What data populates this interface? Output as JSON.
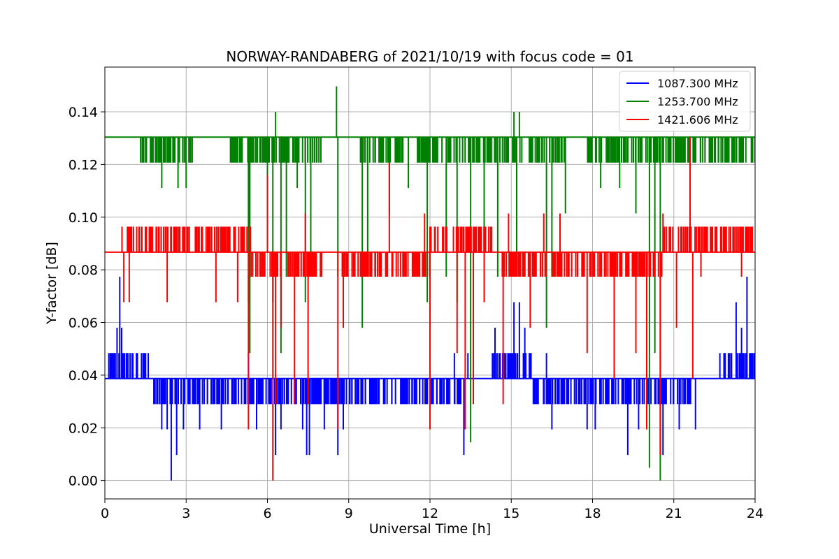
{
  "chart_data": {
    "type": "line",
    "title": "NORWAY-RANDABERG of 2021/10/19 with focus code = 01",
    "xlabel": "Universal Time [h]",
    "ylabel": "Y-factor [dB]",
    "xlim": [
      0,
      24
    ],
    "ylim": [
      -0.007,
      0.157
    ],
    "xticks": [
      "0",
      "3",
      "6",
      "9",
      "12",
      "15",
      "18",
      "21",
      "24"
    ],
    "yticks": [
      "0.00",
      "0.02",
      "0.04",
      "0.06",
      "0.08",
      "0.10",
      "0.12",
      "0.14"
    ],
    "grid": true,
    "legend_position": "top-right",
    "series": [
      {
        "name": "1087.300 MHz",
        "color": "#0000ff",
        "baseline": 0.0387,
        "levels": [
          0.0387,
          0.029,
          0.0484
        ],
        "spikes": [
          {
            "x": 0.15,
            "y": 0.0484
          },
          {
            "x": 0.35,
            "y": 0.0484
          },
          {
            "x": 0.45,
            "y": 0.058
          },
          {
            "x": 0.55,
            "y": 0.0774
          },
          {
            "x": 0.62,
            "y": 0.058
          },
          {
            "x": 0.8,
            "y": 0.0484
          },
          {
            "x": 1.2,
            "y": 0.0484
          },
          {
            "x": 1.6,
            "y": 0.0484
          },
          {
            "x": 2.1,
            "y": 0.0194
          },
          {
            "x": 2.3,
            "y": 0.0194
          },
          {
            "x": 2.45,
            "y": 0.0
          },
          {
            "x": 2.65,
            "y": 0.0097
          },
          {
            "x": 2.9,
            "y": 0.0194
          },
          {
            "x": 3.5,
            "y": 0.0194
          },
          {
            "x": 4.3,
            "y": 0.0194
          },
          {
            "x": 5.3,
            "y": 0.0484
          },
          {
            "x": 5.6,
            "y": 0.0194
          },
          {
            "x": 6.3,
            "y": 0.0097
          },
          {
            "x": 6.5,
            "y": 0.0194
          },
          {
            "x": 7.3,
            "y": 0.0194
          },
          {
            "x": 7.45,
            "y": 0.0097
          },
          {
            "x": 7.55,
            "y": 0.0097
          },
          {
            "x": 8.1,
            "y": 0.0194
          },
          {
            "x": 8.6,
            "y": 0.0097
          },
          {
            "x": 8.8,
            "y": 0.0194
          },
          {
            "x": 12.0,
            "y": 0.0484
          },
          {
            "x": 12.9,
            "y": 0.0484
          },
          {
            "x": 13.25,
            "y": 0.0097
          },
          {
            "x": 13.4,
            "y": 0.0484
          },
          {
            "x": 14.4,
            "y": 0.058
          },
          {
            "x": 14.8,
            "y": 0.0484
          },
          {
            "x": 15.1,
            "y": 0.0677
          },
          {
            "x": 15.3,
            "y": 0.0677
          },
          {
            "x": 15.5,
            "y": 0.058
          },
          {
            "x": 16.3,
            "y": 0.0484
          },
          {
            "x": 16.5,
            "y": 0.0194
          },
          {
            "x": 17.8,
            "y": 0.0194
          },
          {
            "x": 18.1,
            "y": 0.0194
          },
          {
            "x": 19.3,
            "y": 0.0097
          },
          {
            "x": 19.7,
            "y": 0.0194
          },
          {
            "x": 20.6,
            "y": 0.0097
          },
          {
            "x": 21.2,
            "y": 0.0194
          },
          {
            "x": 21.8,
            "y": 0.0194
          },
          {
            "x": 22.7,
            "y": 0.0484
          },
          {
            "x": 23.3,
            "y": 0.0677
          },
          {
            "x": 23.5,
            "y": 0.058
          },
          {
            "x": 23.7,
            "y": 0.0774
          },
          {
            "x": 23.85,
            "y": 0.0484
          }
        ],
        "busy": [
          [
            0.1,
            1.6,
            0.0484
          ],
          [
            1.8,
            5.5,
            0.029
          ],
          [
            5.6,
            12.0,
            0.029
          ],
          [
            12.0,
            13.3,
            0.029
          ],
          [
            14.3,
            15.8,
            0.0484
          ],
          [
            15.8,
            17.8,
            0.029
          ],
          [
            17.8,
            21.7,
            0.029
          ],
          [
            22.8,
            24.0,
            0.0484
          ]
        ]
      },
      {
        "name": "1253.700 MHz",
        "color": "#008000",
        "baseline": 0.1304,
        "levels": [
          0.1304,
          0.1207,
          0.1111
        ],
        "spikes": [
          {
            "x": 2.1,
            "y": 0.1111
          },
          {
            "x": 2.7,
            "y": 0.1111
          },
          {
            "x": 3.0,
            "y": 0.1111
          },
          {
            "x": 5.3,
            "y": 0.0677
          },
          {
            "x": 5.35,
            "y": 0.0484
          },
          {
            "x": 6.0,
            "y": 0.1111
          },
          {
            "x": 6.2,
            "y": 0.0677
          },
          {
            "x": 6.3,
            "y": 0.14
          },
          {
            "x": 6.5,
            "y": 0.0484
          },
          {
            "x": 6.7,
            "y": 0.0774
          },
          {
            "x": 7.1,
            "y": 0.1111
          },
          {
            "x": 7.4,
            "y": 0.0677
          },
          {
            "x": 7.6,
            "y": 0.0774
          },
          {
            "x": 8.55,
            "y": 0.1497
          },
          {
            "x": 8.6,
            "y": 0.0774
          },
          {
            "x": 9.5,
            "y": 0.058
          },
          {
            "x": 9.7,
            "y": 0.0774
          },
          {
            "x": 10.5,
            "y": 0.1014
          },
          {
            "x": 11.2,
            "y": 0.1111
          },
          {
            "x": 11.9,
            "y": 0.0677
          },
          {
            "x": 12.6,
            "y": 0.0774
          },
          {
            "x": 13.0,
            "y": 0.0677
          },
          {
            "x": 13.5,
            "y": 0.0145
          },
          {
            "x": 14.0,
            "y": 0.0677
          },
          {
            "x": 14.5,
            "y": 0.0774
          },
          {
            "x": 15.1,
            "y": 0.14
          },
          {
            "x": 15.2,
            "y": 0.0774
          },
          {
            "x": 15.3,
            "y": 0.14
          },
          {
            "x": 16.3,
            "y": 0.058
          },
          {
            "x": 16.5,
            "y": 0.0774
          },
          {
            "x": 17.0,
            "y": 0.1014
          },
          {
            "x": 18.3,
            "y": 0.1111
          },
          {
            "x": 19.0,
            "y": 0.1111
          },
          {
            "x": 19.6,
            "y": 0.1014
          },
          {
            "x": 20.1,
            "y": 0.0048
          },
          {
            "x": 20.3,
            "y": 0.0484
          },
          {
            "x": 20.5,
            "y": 0.0
          },
          {
            "x": 21.6,
            "y": 0.1207
          },
          {
            "x": 22.5,
            "y": 0.1207
          },
          {
            "x": 23.5,
            "y": 0.1207
          }
        ],
        "busy": [
          [
            1.3,
            3.4,
            0.1207
          ],
          [
            4.5,
            8.0,
            0.1207
          ],
          [
            9.4,
            11.0,
            0.1207
          ],
          [
            11.5,
            17.0,
            0.1207
          ],
          [
            17.8,
            20.6,
            0.1207
          ],
          [
            20.6,
            24.0,
            0.1207
          ]
        ]
      },
      {
        "name": "1421.606 MHz",
        "color": "#ff0000",
        "baseline": 0.0867,
        "levels": [
          0.0867,
          0.0964,
          0.0774
        ],
        "spikes": [
          {
            "x": 0.7,
            "y": 0.0677
          },
          {
            "x": 0.9,
            "y": 0.0677
          },
          {
            "x": 2.3,
            "y": 0.0677
          },
          {
            "x": 4.1,
            "y": 0.0677
          },
          {
            "x": 4.9,
            "y": 0.0677
          },
          {
            "x": 5.3,
            "y": 0.0194
          },
          {
            "x": 6.0,
            "y": 0.116
          },
          {
            "x": 6.2,
            "y": 0.0
          },
          {
            "x": 6.3,
            "y": 0.029
          },
          {
            "x": 6.5,
            "y": 0.058
          },
          {
            "x": 7.0,
            "y": 0.029
          },
          {
            "x": 7.4,
            "y": 0.1014
          },
          {
            "x": 7.5,
            "y": 0.029
          },
          {
            "x": 8.6,
            "y": 0.0194
          },
          {
            "x": 8.8,
            "y": 0.058
          },
          {
            "x": 10.5,
            "y": 0.1207
          },
          {
            "x": 11.8,
            "y": 0.1014
          },
          {
            "x": 12.0,
            "y": 0.0194
          },
          {
            "x": 13.0,
            "y": 0.0484
          },
          {
            "x": 13.3,
            "y": 0.0194
          },
          {
            "x": 13.6,
            "y": 0.029
          },
          {
            "x": 14.0,
            "y": 0.0677
          },
          {
            "x": 14.7,
            "y": 0.029
          },
          {
            "x": 14.9,
            "y": 0.1014
          },
          {
            "x": 15.7,
            "y": 0.058
          },
          {
            "x": 16.2,
            "y": 0.1014
          },
          {
            "x": 16.8,
            "y": 0.1014
          },
          {
            "x": 17.8,
            "y": 0.0484
          },
          {
            "x": 18.8,
            "y": 0.0387
          },
          {
            "x": 19.6,
            "y": 0.0484
          },
          {
            "x": 20.0,
            "y": 0.0194
          },
          {
            "x": 20.5,
            "y": 0.0097
          },
          {
            "x": 20.6,
            "y": 0.1014
          },
          {
            "x": 21.1,
            "y": 0.058
          },
          {
            "x": 21.6,
            "y": 0.1304
          },
          {
            "x": 21.7,
            "y": 0.0387
          },
          {
            "x": 22.0,
            "y": 0.0774
          },
          {
            "x": 23.5,
            "y": 0.0774
          }
        ],
        "busy": [
          [
            0.6,
            5.4,
            0.0964
          ],
          [
            5.4,
            8.0,
            0.0774
          ],
          [
            8.7,
            10.6,
            0.0774
          ],
          [
            10.6,
            12.0,
            0.0774
          ],
          [
            12.0,
            14.5,
            0.0964
          ],
          [
            14.5,
            16.0,
            0.0774
          ],
          [
            16.0,
            20.6,
            0.0774
          ],
          [
            20.6,
            24.0,
            0.0964
          ]
        ]
      }
    ]
  }
}
